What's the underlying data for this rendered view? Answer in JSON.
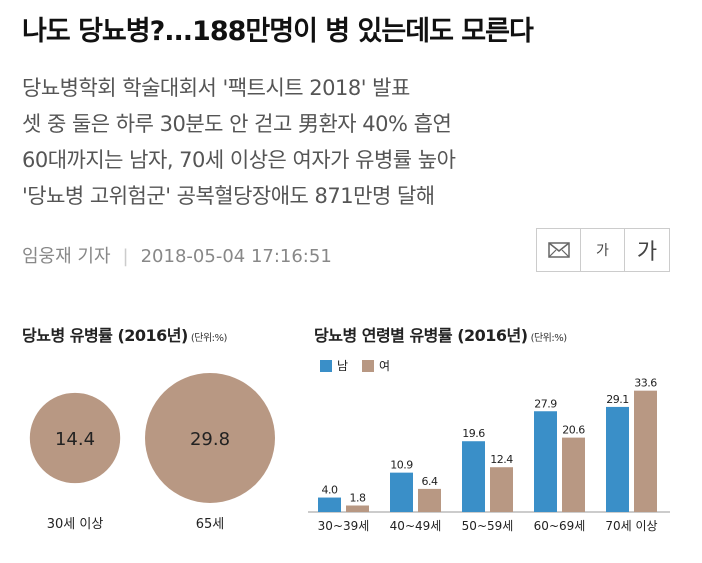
{
  "headline": "나도 당뇨병?...188만명이 병 있는데도 모른다",
  "subheads": [
    "당뇨병학회 학술대회서 '팩트시트 2018' 발표",
    "셋 중 둘은 하루 30분도 안 걷고 男환자 40% 흡연",
    "60대까지는 남자, 70세 이상은 여자가 유병률 높아",
    "'당뇨병 고위험군' 공복혈당장애도 871만명 달해"
  ],
  "byline": {
    "author": "임웅재 기자",
    "timestamp": "2018-05-04 17:16:51"
  },
  "toolbar": {
    "email_icon": "envelope-icon",
    "font_small_label": "가",
    "font_large_label": "가"
  },
  "colors": {
    "male": "#3a8fc8",
    "female": "#b89883",
    "circle": "#b89883",
    "axis": "#999999"
  },
  "chart_data": [
    {
      "type": "bubble",
      "title": "당뇨병 유병률 (2016년)",
      "unit": "(단위:%)",
      "categories": [
        "30세 이상",
        "65세"
      ],
      "values": [
        14.4,
        29.8
      ]
    },
    {
      "type": "bar",
      "title": "당뇨병 연령별 유병률 (2016년)",
      "unit": "(단위:%)",
      "categories": [
        "30~39세",
        "40~49세",
        "50~59세",
        "60~69세",
        "70세 이상"
      ],
      "series": [
        {
          "name": "남",
          "values": [
            4.0,
            10.9,
            19.6,
            27.9,
            29.1
          ]
        },
        {
          "name": "여",
          "values": [
            1.8,
            6.4,
            12.4,
            20.6,
            33.6
          ]
        }
      ],
      "ylim": [
        0,
        36
      ],
      "grid": false,
      "legend": "top-left"
    }
  ]
}
